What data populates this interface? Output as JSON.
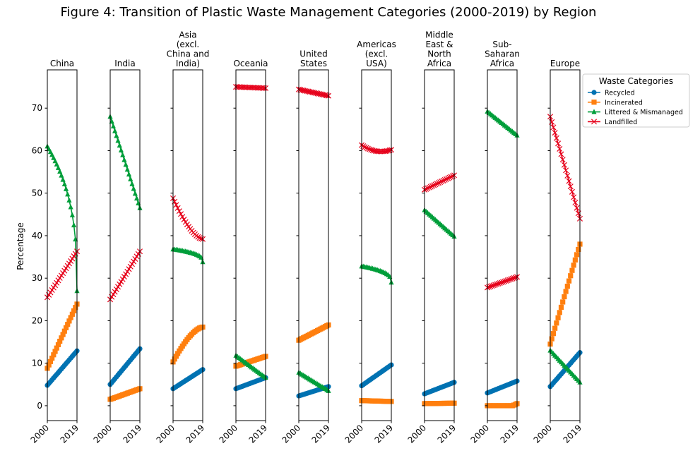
{
  "chart_data": {
    "type": "line",
    "title": "Figure 4: Transition of Plastic Waste Management Categories (2000-2019) by Region",
    "ylabel": "Percentage",
    "xlabel": "",
    "x_ticks": [
      "2000",
      "2019"
    ],
    "y_ticks": [
      0,
      10,
      20,
      30,
      40,
      50,
      60,
      70
    ],
    "ylim": [
      -3.5,
      79
    ],
    "xlim": [
      2000,
      2019
    ],
    "grid": false,
    "legend": {
      "title": "Waste Categories",
      "placement": "right",
      "entries": [
        {
          "name": "Recycled",
          "color": "#0072B2",
          "marker": "circle"
        },
        {
          "name": "Incinerated",
          "color": "#FF7F0E",
          "marker": "square"
        },
        {
          "name": "Littered & Mismanaged",
          "color": "#009E3A",
          "marker": "triangle"
        },
        {
          "name": "Landfilled",
          "color": "#E6001A",
          "marker": "x"
        }
      ]
    },
    "panels": [
      {
        "title": "China",
        "series": {
          "Recycled": {
            "start": 4.8,
            "end": 12.9,
            "shape": "linear"
          },
          "Incinerated": {
            "start": 8.8,
            "end": 23.9,
            "shape": "linear"
          },
          "Littered & Mismanaged": {
            "start": 61.0,
            "end": 27.0,
            "shape": "convex"
          },
          "Landfilled": {
            "start": 25.5,
            "end": 36.3,
            "shape": "linear"
          }
        }
      },
      {
        "title": "India",
        "series": {
          "Recycled": {
            "start": 5.0,
            "end": 13.4,
            "shape": "linear"
          },
          "Incinerated": {
            "start": 1.5,
            "end": 4.0,
            "shape": "linear"
          },
          "Littered & Mismanaged": {
            "start": 68.0,
            "end": 46.5,
            "shape": "linear"
          },
          "Landfilled": {
            "start": 25.0,
            "end": 36.3,
            "shape": "linear"
          }
        }
      },
      {
        "title": "Asia\n(excl.\nChina and\nIndia)",
        "series": {
          "Recycled": {
            "start": 4.0,
            "end": 8.5,
            "shape": "linear"
          },
          "Incinerated": {
            "start": 10.3,
            "end": 18.5,
            "shape": "concave"
          },
          "Littered & Mismanaged": {
            "start": 36.8,
            "end": 33.8,
            "shape": "convex"
          },
          "Landfilled": {
            "start": 48.8,
            "end": 39.2,
            "shape": "concave"
          }
        }
      },
      {
        "title": "Oceania",
        "series": {
          "Recycled": {
            "start": 4.0,
            "end": 6.6,
            "shape": "linear"
          },
          "Incinerated": {
            "start": 9.3,
            "end": 11.6,
            "shape": "linear"
          },
          "Littered & Mismanaged": {
            "start": 11.8,
            "end": 6.6,
            "shape": "linear"
          },
          "Landfilled": {
            "start": 75.0,
            "end": 74.7,
            "shape": "linear"
          }
        }
      },
      {
        "title": "United\nStates",
        "series": {
          "Recycled": {
            "start": 2.3,
            "end": 4.5,
            "shape": "linear"
          },
          "Incinerated": {
            "start": 15.4,
            "end": 19.0,
            "shape": "linear"
          },
          "Littered & Mismanaged": {
            "start": 7.8,
            "end": 3.5,
            "shape": "linear"
          },
          "Landfilled": {
            "start": 74.4,
            "end": 72.9,
            "shape": "linear"
          }
        }
      },
      {
        "title": "Americas\n(excl.\nUSA)",
        "series": {
          "Recycled": {
            "start": 4.7,
            "end": 9.6,
            "shape": "linear"
          },
          "Incinerated": {
            "start": 1.2,
            "end": 1.0,
            "shape": "linear"
          },
          "Littered & Mismanaged": {
            "start": 32.8,
            "end": 29.0,
            "shape": "convex"
          },
          "Landfilled": {
            "start": 61.3,
            "end": 60.2,
            "shape": "dip",
            "min": 59.8
          }
        }
      },
      {
        "title": "Middle\nEast &\nNorth\nAfrica",
        "series": {
          "Recycled": {
            "start": 2.8,
            "end": 5.5,
            "shape": "linear"
          },
          "Incinerated": {
            "start": 0.5,
            "end": 0.6,
            "shape": "linear"
          },
          "Littered & Mismanaged": {
            "start": 46.0,
            "end": 39.8,
            "shape": "linear"
          },
          "Landfilled": {
            "start": 50.8,
            "end": 54.2,
            "shape": "linear"
          }
        }
      },
      {
        "title": "Sub-\nSaharan\nAfrica",
        "series": {
          "Recycled": {
            "start": 3.0,
            "end": 5.8,
            "shape": "linear"
          },
          "Incinerated": {
            "start": 0.0,
            "end": 0.5,
            "shape": "flat-then-up"
          },
          "Littered & Mismanaged": {
            "start": 69.2,
            "end": 63.6,
            "shape": "linear"
          },
          "Landfilled": {
            "start": 27.8,
            "end": 30.3,
            "shape": "linear"
          }
        }
      },
      {
        "title": "Europe",
        "series": {
          "Recycled": {
            "start": 4.5,
            "end": 12.5,
            "shape": "linear"
          },
          "Incinerated": {
            "start": 14.5,
            "end": 38.0,
            "shape": "linear"
          },
          "Littered & Mismanaged": {
            "start": 13.0,
            "end": 5.5,
            "shape": "linear"
          },
          "Landfilled": {
            "start": 68.0,
            "end": 44.0,
            "shape": "linear"
          }
        }
      }
    ]
  }
}
